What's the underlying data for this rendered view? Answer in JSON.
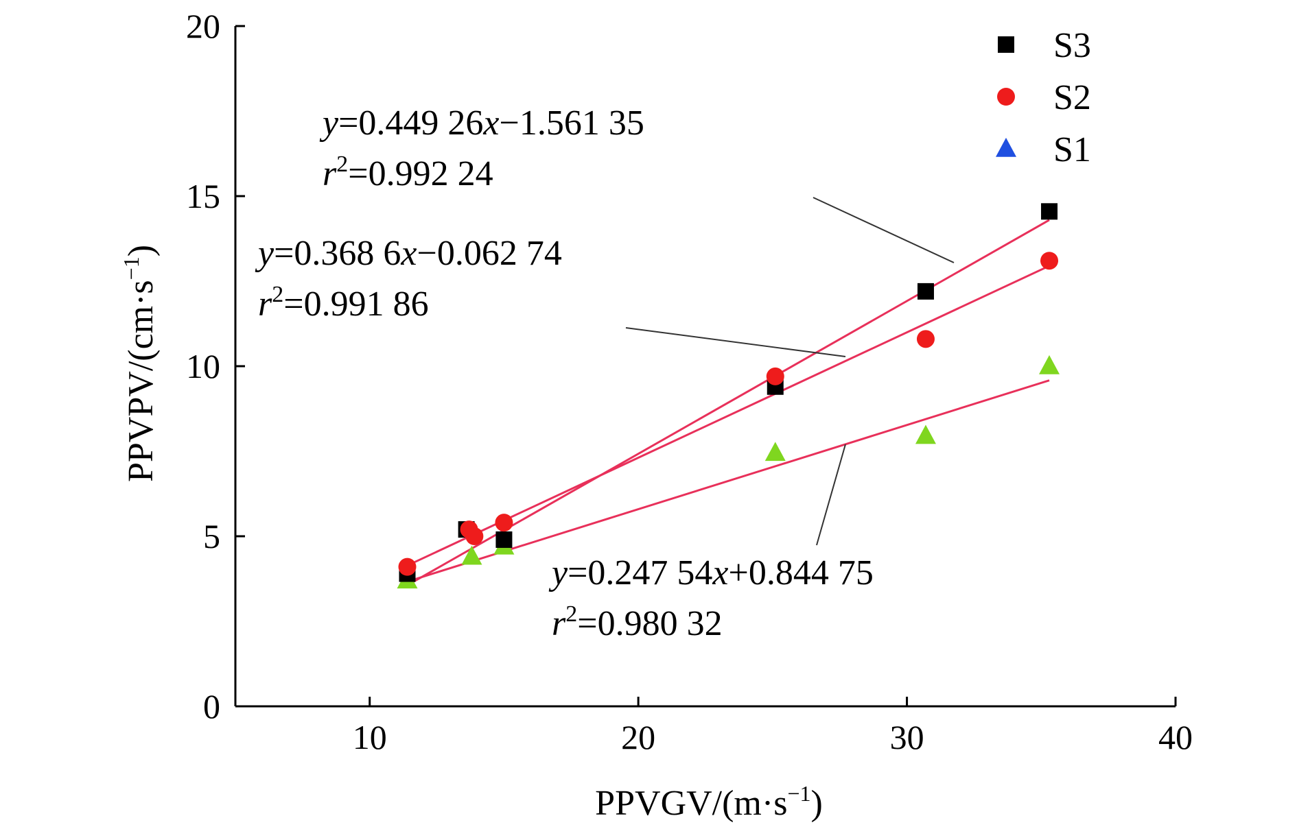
{
  "chart_data": {
    "type": "scatter",
    "xlabel": "PPVGV/(m·s",
    "xlabel_sup": "−1",
    "xlabel_close": ")",
    "ylabel": "PPVPV/(cm·s",
    "ylabel_sup": "−1",
    "ylabel_close": ")",
    "xlim": [
      5,
      40
    ],
    "ylim": [
      0,
      20
    ],
    "x_ticks": [
      10,
      20,
      30,
      40
    ],
    "x_tick_labels": [
      "10",
      "20",
      "30",
      "40"
    ],
    "y_ticks": [
      0,
      5,
      10,
      15,
      20
    ],
    "y_tick_labels": [
      "0",
      "5",
      "10",
      "15",
      "20"
    ],
    "legend_position": "top-right",
    "grid": false,
    "series": [
      {
        "name": "S3",
        "marker": "square",
        "color": "#000000",
        "x": [
          11.4,
          13.6,
          15.0,
          25.1,
          30.7,
          35.3
        ],
        "y": [
          3.9,
          5.2,
          4.9,
          9.4,
          12.2,
          14.55
        ],
        "fit": {
          "slope": 0.44926,
          "intercept": -1.56135,
          "x_range": [
            11.4,
            35.3
          ],
          "color": "#e8305a"
        },
        "equation": {
          "y": "y",
          "eq1": "=0.449 26",
          "x": "x",
          "eq2": "−1.561 35"
        },
        "r2": {
          "r": "r",
          "sup": "2",
          "value": "=0.992 24"
        }
      },
      {
        "name": "S2",
        "marker": "circle",
        "color": "#ee1c1c",
        "x": [
          11.4,
          13.7,
          13.9,
          15.0,
          25.1,
          30.7,
          35.3
        ],
        "y": [
          4.1,
          5.2,
          5.0,
          5.4,
          9.7,
          10.8,
          13.1
        ],
        "fit": {
          "slope": 0.3686,
          "intercept": -0.06274,
          "x_range": [
            11.4,
            35.3
          ],
          "color": "#e8305a"
        },
        "equation": {
          "y": "y",
          "eq1": "=0.368 6",
          "x": "x",
          "eq2": "−0.062 74"
        },
        "r2": {
          "r": "r",
          "sup": "2",
          "value": "=0.991 86"
        }
      },
      {
        "name": "S1",
        "marker": "triangle",
        "color": "#7fd61f",
        "legend_color": "#1f4fe0",
        "x": [
          11.4,
          13.8,
          15.0,
          25.1,
          30.7,
          35.3
        ],
        "y": [
          3.7,
          4.4,
          4.7,
          7.45,
          7.95,
          10.0
        ],
        "fit": {
          "slope": 0.24754,
          "intercept": 0.84475,
          "x_range": [
            11.4,
            35.3
          ],
          "color": "#e8305a"
        },
        "equation": {
          "y": "y",
          "eq1": "=0.247 54",
          "x": "x",
          "eq2": "+0.844 75"
        },
        "r2": {
          "r": "r",
          "sup": "2",
          "value": "=0.980 32"
        }
      }
    ]
  }
}
